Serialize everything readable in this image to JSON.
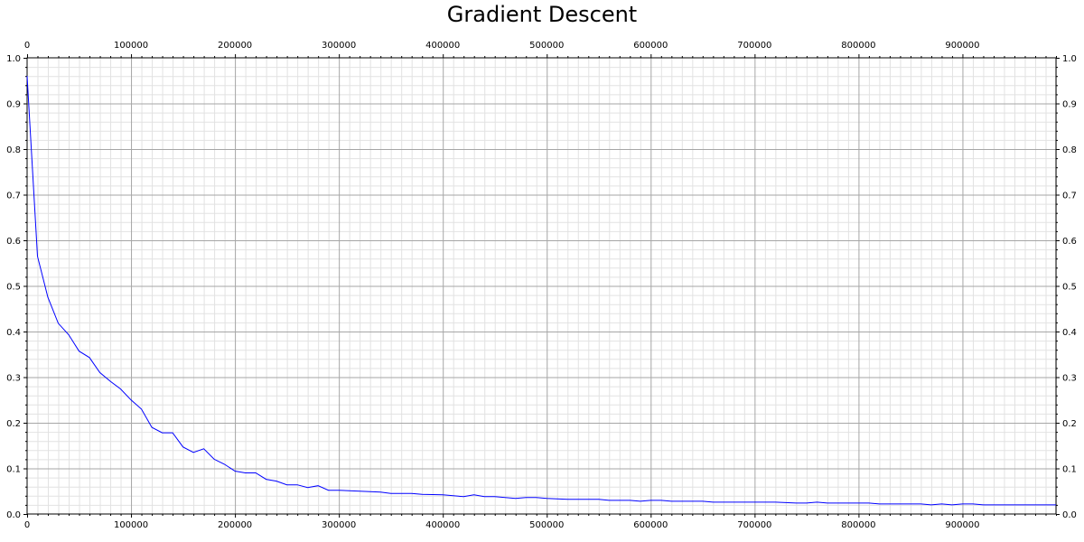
{
  "chart_data": {
    "type": "line",
    "title": "Gradient Descent",
    "xlabel": "",
    "ylabel": "",
    "xlim": [
      0,
      990000
    ],
    "ylim": [
      0,
      1.0
    ],
    "x_ticks": [
      "0",
      "100000",
      "200000",
      "300000",
      "400000",
      "500000",
      "600000",
      "700000",
      "800000",
      "900000"
    ],
    "y_ticks": [
      "0.0",
      "0.1",
      "0.2",
      "0.3",
      "0.4",
      "0.5",
      "0.6",
      "0.7",
      "0.8",
      "0.9",
      "1.0"
    ],
    "grid": true,
    "line_color": "#0000ff",
    "series": [
      {
        "x": [
          0,
          10000,
          20000,
          30000,
          40000,
          50000,
          60000,
          70000,
          80000,
          90000,
          100000,
          110000,
          120000,
          130000,
          140000,
          150000,
          160000,
          170000,
          180000,
          190000,
          200000,
          210000,
          220000,
          230000,
          240000,
          250000,
          260000,
          270000,
          280000,
          290000,
          300000,
          320000,
          340000,
          350000,
          370000,
          380000,
          400000,
          420000,
          430000,
          440000,
          450000,
          470000,
          480000,
          490000,
          500000,
          520000,
          550000,
          560000,
          580000,
          590000,
          600000,
          610000,
          620000,
          650000,
          660000,
          700000,
          720000,
          740000,
          750000,
          760000,
          770000,
          800000,
          810000,
          820000,
          860000,
          870000,
          880000,
          890000,
          900000,
          910000,
          920000,
          990000
        ],
        "values": [
          0.96,
          0.565,
          0.475,
          0.418,
          0.393,
          0.357,
          0.343,
          0.31,
          0.291,
          0.274,
          0.25,
          0.23,
          0.19,
          0.178,
          0.178,
          0.147,
          0.135,
          0.143,
          0.12,
          0.109,
          0.094,
          0.09,
          0.09,
          0.076,
          0.072,
          0.064,
          0.064,
          0.058,
          0.062,
          0.052,
          0.052,
          0.05,
          0.048,
          0.045,
          0.045,
          0.043,
          0.042,
          0.038,
          0.042,
          0.038,
          0.038,
          0.034,
          0.036,
          0.036,
          0.034,
          0.032,
          0.032,
          0.03,
          0.03,
          0.028,
          0.03,
          0.03,
          0.028,
          0.028,
          0.026,
          0.026,
          0.026,
          0.024,
          0.024,
          0.026,
          0.024,
          0.024,
          0.024,
          0.022,
          0.022,
          0.02,
          0.022,
          0.02,
          0.022,
          0.022,
          0.02,
          0.02
        ]
      }
    ]
  }
}
